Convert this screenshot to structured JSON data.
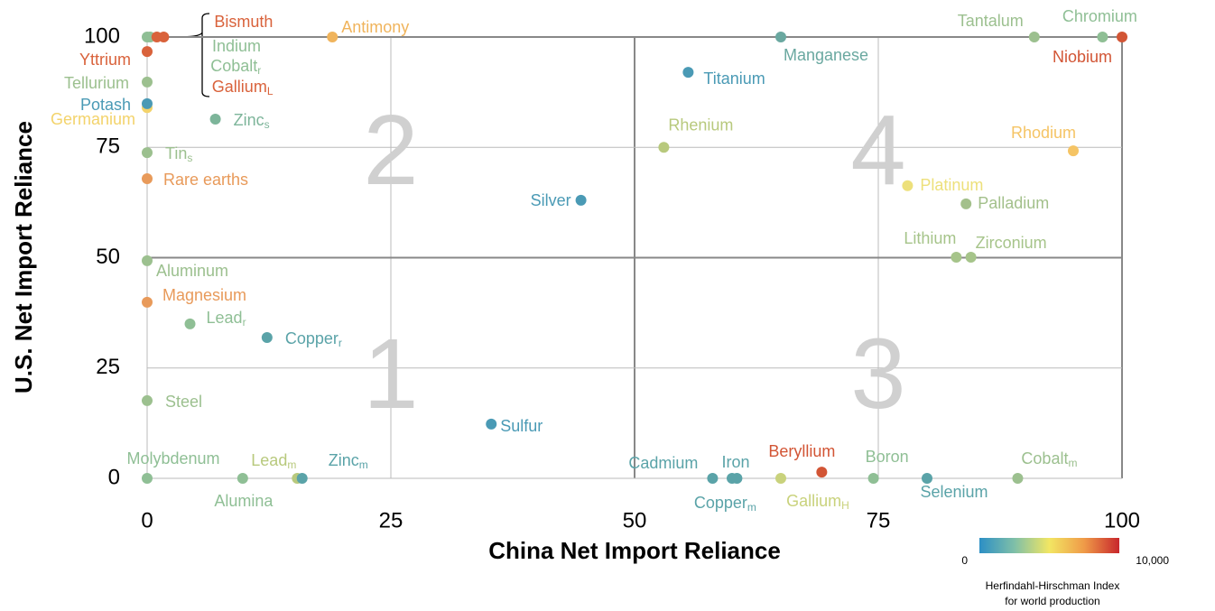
{
  "chart_data": {
    "type": "scatter",
    "x_label": "China Net Import Reliance",
    "y_label": "U.S. Net Import Reliance",
    "xlim": [
      0,
      100
    ],
    "ylim": [
      0,
      100
    ],
    "xticks": [
      0,
      25,
      50,
      75,
      100
    ],
    "yticks": [
      0,
      25,
      50,
      75,
      100
    ],
    "grid": true,
    "quadrant_lines": [
      50,
      100
    ],
    "quadrants": [
      "1",
      "2",
      "3",
      "4"
    ],
    "points": [
      {
        "name": "Indium",
        "x": 0,
        "y": 100,
        "color": "#8fbf95"
      },
      {
        "name": "Cobalt",
        "sub": "r",
        "x": 0.3,
        "y": 100,
        "color": "#8fbf95"
      },
      {
        "name": "Gallium",
        "sub": "L",
        "x": 1,
        "y": 100,
        "color": "#d9623b"
      },
      {
        "name": "Bismuth",
        "x": 1.7,
        "y": 100,
        "color": "#d9623b"
      },
      {
        "name": "Antimony",
        "x": 19,
        "y": 100,
        "color": "#f0b45c"
      },
      {
        "name": "Manganese",
        "x": 65,
        "y": 100,
        "color": "#6aa8a0"
      },
      {
        "name": "Tantalum",
        "x": 91,
        "y": 100,
        "color": "#9cc08f"
      },
      {
        "name": "Chromium",
        "x": 98,
        "y": 100,
        "color": "#8fbf95"
      },
      {
        "name": "Niobium",
        "x": 100,
        "y": 100,
        "color": "#d25535"
      },
      {
        "name": "Yttrium",
        "x": 0,
        "y": 96.7,
        "color": "#d9623b"
      },
      {
        "name": "Tellurium",
        "x": 0,
        "y": 89.8,
        "color": "#9cc08f"
      },
      {
        "name": "Germanium",
        "x": 0,
        "y": 84,
        "color": "#f3d36b"
      },
      {
        "name": "Potash",
        "x": 0,
        "y": 84.9,
        "color": "#4a9ab5"
      },
      {
        "name": "Zinc",
        "sub": "s",
        "x": 7,
        "y": 81.4,
        "color": "#7db59a"
      },
      {
        "name": "Titanium",
        "x": 55.5,
        "y": 92,
        "color": "#4a9ab5"
      },
      {
        "name": "Rhenium",
        "x": 53,
        "y": 75,
        "color": "#b8c97d"
      },
      {
        "name": "Rhodium",
        "x": 95,
        "y": 74.2,
        "color": "#f5c465"
      },
      {
        "name": "Tin",
        "sub": "s",
        "x": 0,
        "y": 73.8,
        "color": "#9cc08f"
      },
      {
        "name": "Rare earths",
        "x": 0,
        "y": 67.9,
        "color": "#e89a5a"
      },
      {
        "name": "Platinum",
        "x": 78,
        "y": 66.3,
        "color": "#ede07b"
      },
      {
        "name": "Silver",
        "x": 44.5,
        "y": 63,
        "color": "#4a9ab5"
      },
      {
        "name": "Palladium",
        "x": 84,
        "y": 62.2,
        "color": "#a3c08b"
      },
      {
        "name": "Lithium",
        "x": 83,
        "y": 50.1,
        "color": "#a6c48a"
      },
      {
        "name": "Zirconium",
        "x": 84.5,
        "y": 50.1,
        "color": "#a6c48a"
      },
      {
        "name": "Aluminum",
        "x": 0,
        "y": 49.3,
        "color": "#9cc08f"
      },
      {
        "name": "Magnesium",
        "x": 0,
        "y": 39.9,
        "color": "#e89a5a"
      },
      {
        "name": "Lead",
        "sub": "r",
        "x": 4.4,
        "y": 35,
        "color": "#8fbf95"
      },
      {
        "name": "Copper",
        "sub": "r",
        "x": 12.3,
        "y": 31.9,
        "color": "#5aa3a8"
      },
      {
        "name": "Steel",
        "x": 0,
        "y": 17.6,
        "color": "#9cc08f"
      },
      {
        "name": "Sulfur",
        "x": 35.3,
        "y": 12.3,
        "color": "#4a9ab5"
      },
      {
        "name": "Beryllium",
        "x": 69.2,
        "y": 1.4,
        "color": "#d25535"
      },
      {
        "name": "Molybdenum",
        "x": 0,
        "y": 0,
        "color": "#8fbf95"
      },
      {
        "name": "Alumina",
        "x": 9.8,
        "y": 0,
        "color": "#8fbf95"
      },
      {
        "name": "Lead",
        "sub": "m",
        "x": 15.4,
        "y": 0,
        "color": "#b8c97d"
      },
      {
        "name": "Zinc",
        "sub": "m",
        "x": 15.9,
        "y": 0,
        "color": "#5aa3a8"
      },
      {
        "name": "Cadmium",
        "x": 58,
        "y": 0,
        "color": "#5aa3a8"
      },
      {
        "name": "Iron",
        "x": 60,
        "y": 0,
        "color": "#5aa3a8"
      },
      {
        "name": "Copper",
        "sub": "m",
        "x": 60.5,
        "y": 0,
        "color": "#5aa3a8"
      },
      {
        "name": "Gallium",
        "sub": "H",
        "x": 65,
        "y": 0,
        "color": "#c9d27c"
      },
      {
        "name": "Boron",
        "x": 74.5,
        "y": 0,
        "color": "#8fbf95"
      },
      {
        "name": "Selenium",
        "x": 80,
        "y": 0,
        "color": "#5aa3a8"
      },
      {
        "name": "Cobalt",
        "sub": "m",
        "x": 89.3,
        "y": 0,
        "color": "#9cc08f"
      }
    ],
    "colorbar": {
      "title": [
        "Herfindahl-Hirschman Index",
        "for world production"
      ],
      "ticks": [
        0,
        {
          "value": 10000,
          "label": "10,000"
        }
      ],
      "range": [
        0,
        10000
      ],
      "colors": [
        "#2c8fc5",
        "#7fbfa8",
        "#f2e663",
        "#ef9a48",
        "#c8272c"
      ]
    }
  }
}
